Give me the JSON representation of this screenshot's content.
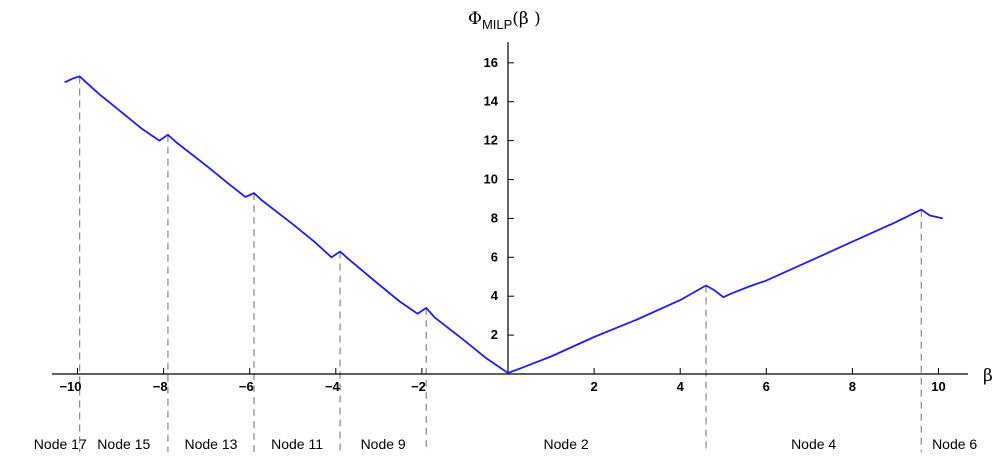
{
  "chart_data": {
    "type": "line",
    "title": "",
    "xlabel": "β",
    "ylabel": {
      "symbol": "Φ",
      "subscript": "MILP",
      "argument": "(β )"
    },
    "xlim": [
      -10,
      10
    ],
    "ylim": [
      0,
      16
    ],
    "grid": false,
    "x_ticks": [
      {
        "value": -10,
        "label": "−10"
      },
      {
        "value": -8,
        "label": "−8"
      },
      {
        "value": -6,
        "label": "−6"
      },
      {
        "value": -4,
        "label": "−4"
      },
      {
        "value": -2,
        "label": "−2"
      },
      {
        "value": 2,
        "label": "2"
      },
      {
        "value": 4,
        "label": "4"
      },
      {
        "value": 6,
        "label": "6"
      },
      {
        "value": 8,
        "label": "8"
      },
      {
        "value": 10,
        "label": "10"
      }
    ],
    "y_ticks": [
      {
        "value": 2,
        "label": "2"
      },
      {
        "value": 4,
        "label": "4"
      },
      {
        "value": 6,
        "label": "6"
      },
      {
        "value": 8,
        "label": "8"
      },
      {
        "value": 10,
        "label": "10"
      },
      {
        "value": 12,
        "label": "12"
      },
      {
        "value": 14,
        "label": "14"
      },
      {
        "value": 16,
        "label": "16"
      }
    ],
    "series": [
      {
        "color": "#1f1fe8",
        "x": [
          -10.3,
          -10.1,
          -9.95,
          -9.8,
          -9.5,
          -9.0,
          -8.5,
          -8.1,
          -7.9,
          -7.7,
          -7.0,
          -6.5,
          -6.1,
          -5.9,
          -5.7,
          -5.0,
          -4.5,
          -4.1,
          -3.9,
          -3.7,
          -3.0,
          -2.5,
          -2.1,
          -1.9,
          -1.7,
          -1.0,
          -0.5,
          0.0,
          0.3,
          1.0,
          2.0,
          3.0,
          4.0,
          4.6,
          4.8,
          5.0,
          5.2,
          5.6,
          6.0,
          7.0,
          8.0,
          9.0,
          9.6,
          9.8,
          10.1
        ],
        "y": [
          15.0,
          15.2,
          15.3,
          15.0,
          14.4,
          13.5,
          12.6,
          12.0,
          12.3,
          11.9,
          10.7,
          9.8,
          9.1,
          9.3,
          8.9,
          7.7,
          6.8,
          6.0,
          6.3,
          5.9,
          4.6,
          3.7,
          3.1,
          3.4,
          2.9,
          1.7,
          0.8,
          0.05,
          0.3,
          0.9,
          1.9,
          2.8,
          3.8,
          4.55,
          4.3,
          3.95,
          4.15,
          4.5,
          4.8,
          5.8,
          6.8,
          7.8,
          8.45,
          8.15,
          8.0
        ]
      }
    ],
    "boundaries": [
      -9.95,
      -7.9,
      -5.9,
      -3.9,
      -1.9,
      4.6,
      9.6
    ],
    "regions": [
      {
        "label": "Node 17"
      },
      {
        "label": "Node 15"
      },
      {
        "label": "Node 13"
      },
      {
        "label": "Node 11"
      },
      {
        "label": "Node 9"
      },
      {
        "label": "Node 2"
      },
      {
        "label": "Node 4"
      },
      {
        "label": "Node 6"
      }
    ]
  }
}
